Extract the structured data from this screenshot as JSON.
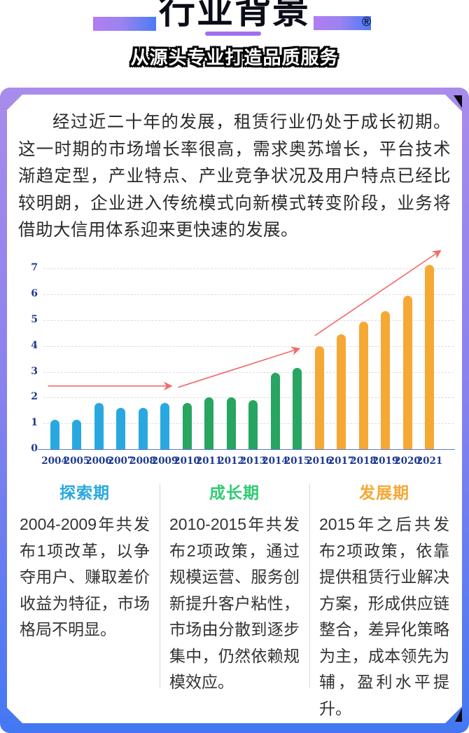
{
  "header": {
    "title": "行业背景",
    "subtitle": "从源头专业打造品质服务",
    "registered_mark": "®",
    "underline_color": "#a06ff0",
    "deco_gradient_from": "#b27df2",
    "deco_gradient_to": "#4b7bf5"
  },
  "intro": {
    "text": "经过近二十年的发展，租赁行业仍处于成长初期。这一时期的市场增长率很高，需求奥苏增长，平台技术渐趋定型，产业特点、产业竞争状况及用户特点已经比较明朗，企业进入传统模式向新模式转变阶段，业务将借助大信用体系迎来更快速的发展。"
  },
  "chart_data": {
    "type": "bar",
    "categories": [
      "2004",
      "2005",
      "2006",
      "2007",
      "2008",
      "2009",
      "2010",
      "2011",
      "2012",
      "2013",
      "2014",
      "2015",
      "2016",
      "2017",
      "2018",
      "2019",
      "2020",
      "2021"
    ],
    "values": [
      1.15,
      1.15,
      1.8,
      1.6,
      1.6,
      1.8,
      1.8,
      2.0,
      2.0,
      1.9,
      2.95,
      3.15,
      4.0,
      4.45,
      4.95,
      5.35,
      5.95,
      7.15
    ],
    "title": "",
    "xlabel": "",
    "ylabel": "",
    "ylim": [
      0,
      7
    ],
    "yticks": [
      0,
      1,
      2,
      3,
      4,
      5,
      6,
      7
    ],
    "grid": "dashed-horizontal",
    "legend": "none",
    "segments": [
      {
        "label": "探索期",
        "from": 2004,
        "to": 2009,
        "color": "#29a8e0"
      },
      {
        "label": "成长期",
        "from": 2010,
        "to": 2015,
        "color": "#27a561"
      },
      {
        "label": "发展期",
        "from": 2016,
        "to": 2021,
        "color": "#f6a835"
      }
    ],
    "trend_arrows": [
      {
        "x1": 2003.7,
        "y1": 2.45,
        "x2": 2009.3,
        "y2": 2.45
      },
      {
        "x1": 2009.6,
        "y1": 2.4,
        "x2": 2015.1,
        "y2": 3.9
      },
      {
        "x1": 2015.8,
        "y1": 4.4,
        "x2": 2021.5,
        "y2": 7.7
      }
    ],
    "arrow_color": "#f4696c",
    "axis_color": "#5b7bd8",
    "tick_label_color": "#1e3a8f"
  },
  "periods": [
    {
      "title": "探索期",
      "color": "#29a8e0",
      "text": "2004-2009年共发布1项改革，以争夺用户、赚取差价收益为特征，市场格局不明显。"
    },
    {
      "title": "成长期",
      "color": "#2ecc71",
      "text": "2010-2015年共发布2项政策，通过规模运营、服务创新提升客户粘性，市场由分散到逐步集中，仍然依赖规模效应。"
    },
    {
      "title": "发展期",
      "color": "#f6a835",
      "text": "2015年之后共发布2项政策，依靠提供租赁行业解决方案，形成供应链整合，差异化策略为主，成本领先为辅，盈利水平提升。"
    }
  ],
  "footer": {
    "bar_color": "#4478f3"
  }
}
